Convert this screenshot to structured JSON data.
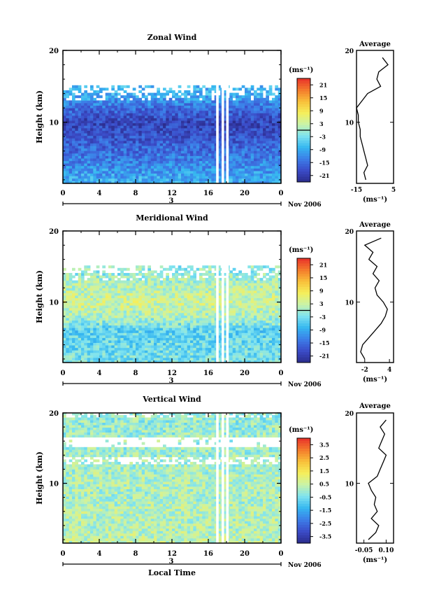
{
  "common": {
    "xlabel": "Local Time",
    "ylabel": "Height (km)",
    "unit_label": "(ms⁻¹)",
    "average_title": "Average",
    "date_label": "Nov 2006",
    "day_label": "3",
    "x_ticks": [
      "0",
      "4",
      "8",
      "12",
      "16",
      "20",
      "0"
    ],
    "y_ticks": [
      "20",
      "10"
    ]
  },
  "chart_data": [
    {
      "type": "heatmap",
      "title": "Zonal Wind",
      "xlabel": "Local Time",
      "ylabel": "Height (km)",
      "xlim": [
        0,
        24
      ],
      "ylim": [
        1.5,
        20
      ],
      "colorbar": {
        "label": "(ms⁻¹)",
        "ticks": [
          "21",
          "15",
          "9",
          "3",
          "-3",
          "-9",
          "-15",
          "-21"
        ],
        "range": [
          -24,
          24
        ],
        "zero_line": 0
      },
      "data_height_range": [
        1.5,
        15
      ],
      "gaps_hours": [
        17.0,
        17.6,
        18.1
      ],
      "average_profile": {
        "title": "Average",
        "xlim": [
          -15,
          5
        ],
        "x_ticks": [
          "-15",
          "5"
        ],
        "x_unit": "(ms⁻¹)",
        "heights": [
          2,
          3,
          4,
          5,
          6,
          7,
          8,
          9,
          10,
          11,
          12,
          13,
          14,
          15,
          16,
          17,
          18,
          19
        ],
        "values": [
          -10,
          -11,
          -9,
          -10,
          -11,
          -12,
          -13,
          -13,
          -14,
          -14,
          -15,
          -12,
          -9,
          -2,
          -4,
          -3,
          2,
          -1
        ]
      },
      "field_profile": {
        "heights": [
          2,
          4,
          6,
          8,
          10,
          12,
          14
        ],
        "values": [
          -9,
          -12,
          -15,
          -18,
          -20,
          -15,
          -8
        ]
      }
    },
    {
      "type": "heatmap",
      "title": "Meridional Wind",
      "xlabel": "Local Time",
      "ylabel": "Height (km)",
      "xlim": [
        0,
        24
      ],
      "ylim": [
        1.5,
        20
      ],
      "colorbar": {
        "label": "(ms⁻¹)",
        "ticks": [
          "21",
          "15",
          "9",
          "3",
          "-3",
          "-9",
          "-15",
          "-21"
        ],
        "range": [
          -24,
          24
        ],
        "zero_line": 0
      },
      "data_height_range": [
        1.5,
        15
      ],
      "gaps_hours": [
        17.0,
        17.6,
        18.1
      ],
      "average_profile": {
        "title": "Average",
        "xlim": [
          -4,
          5
        ],
        "x_ticks": [
          "-2",
          "4"
        ],
        "x_unit": "(ms⁻¹)",
        "heights": [
          2,
          3,
          4,
          5,
          6,
          7,
          8,
          9,
          10,
          11,
          12,
          13,
          14,
          15,
          16,
          17,
          18,
          19
        ],
        "values": [
          -2,
          -3,
          -2.5,
          -1,
          0.5,
          2,
          3,
          3.5,
          2.5,
          1,
          0.5,
          1.5,
          0,
          1,
          -1,
          0,
          -2,
          2
        ]
      },
      "field_profile": {
        "heights": [
          2,
          4,
          6,
          8,
          10,
          12,
          14
        ],
        "values": [
          -3,
          -4,
          -5,
          1,
          4,
          2,
          -1
        ]
      }
    },
    {
      "type": "heatmap",
      "title": "Vertical Wind",
      "xlabel": "Local Time",
      "ylabel": "Height (km)",
      "xlim": [
        0,
        24
      ],
      "ylim": [
        1.5,
        20
      ],
      "colorbar": {
        "label": "(ms⁻¹)",
        "ticks": [
          "3.5",
          "2.5",
          "1.5",
          "0.5",
          "-0.5",
          "-1.5",
          "-2.5",
          "-3.5"
        ],
        "range": [
          -4,
          4
        ]
      },
      "data_height_range": [
        1.5,
        20
      ],
      "gaps_hours": [
        17.0,
        17.6,
        18.1
      ],
      "average_profile": {
        "title": "Average",
        "xlim": [
          -0.1,
          0.15
        ],
        "x_ticks": [
          "-0.05",
          "0.10"
        ],
        "x_unit": "(ms⁻¹)",
        "heights": [
          2,
          3,
          4,
          5,
          6,
          7,
          8,
          9,
          10,
          11,
          12,
          13,
          14,
          15,
          16,
          17,
          18,
          19
        ],
        "values": [
          -0.02,
          0.03,
          0.05,
          0.0,
          0.04,
          0.02,
          0.03,
          0.0,
          -0.02,
          0.04,
          0.06,
          0.08,
          0.1,
          0.05,
          0.07,
          0.09,
          0.06,
          0.1
        ]
      },
      "field_profile": {
        "heights": [
          2,
          4,
          6,
          8,
          10,
          12,
          14,
          18
        ],
        "values": [
          0.4,
          0.2,
          0.3,
          0.1,
          0.2,
          0.1,
          0.0,
          -0.1
        ]
      }
    }
  ]
}
